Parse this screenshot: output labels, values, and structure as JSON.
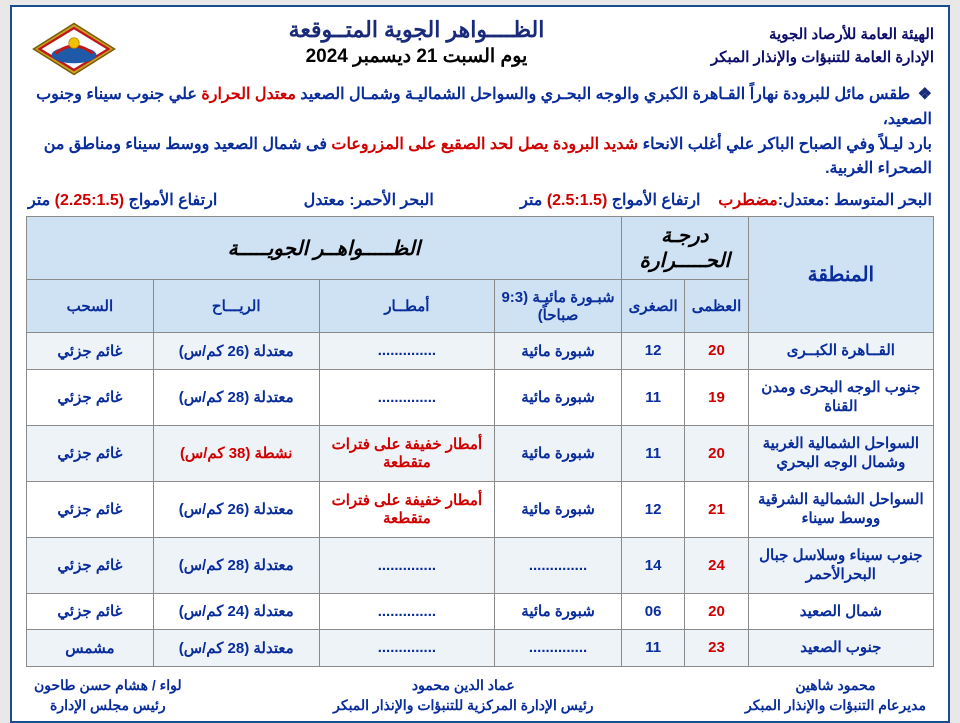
{
  "org": {
    "l1": "الهيئة العامة للأرصاد الجوية",
    "l2": "الإدارة العامة للتنبؤات والإنذار المبكر"
  },
  "title": {
    "main": "الظــــواهر الجوية المتــوقعة",
    "date": "يوم  السبت 21 ديسمبر 2024"
  },
  "summary": {
    "p1a": "طقس مائل للبرودة نهاراً القـاهرة الكبري والوجه البحـري والسواحل الشماليـة وشمـال الصعيد ",
    "p1b": "معتدل الحرارة",
    "p1c": " علي  جنوب سيناء وجنوب الصعيد،",
    "p2a": "بارد ليـلاً وفي الصباح الباكر علي أغلب الانحاء ",
    "p2b": "شديد البرودة يصل لحد الصقيع على المزروعات",
    "p2c": " فى شمال الصعيد ووسط سيناء ومناطق من الصحراء الغربية."
  },
  "sea": {
    "med_label": "البحر المتوسط :",
    "med_state_lbl": "معتدل:",
    "med_state": "مضطرب",
    "med_wave_lbl": "ارتفاع الأمواج ",
    "med_wave_val": "(2.5:1.5)",
    "meter": " متر",
    "red_label": "البحر الأحمر:",
    "red_state": " معتدل",
    "red_wave_lbl": "ارتفاع الأمواج ",
    "red_wave_val": "(2.25:1.5)"
  },
  "table": {
    "hd_region": "المنطقة",
    "hd_temp": "درجـة الحـــــرارة",
    "hd_phen": "الظـــــواهــر الجويـــــة",
    "hd_hi": "العظمى",
    "hd_lo": "الصغرى",
    "hd_fog": "شبـورة مائيـة (9:3 صباحاً)",
    "hd_rain": "أمطــار",
    "hd_wind": "الريـــاح",
    "hd_cloud": "السحب",
    "rows": [
      {
        "region": "القــاهرة الكبــرى",
        "hi": "20",
        "lo": "12",
        "fog": "شبورة مائية",
        "rain": "..............",
        "rain_red": false,
        "wind": "معتدلة (26 كم/س)",
        "wind_red": false,
        "cloud": "غائم جزئي"
      },
      {
        "region": "جنوب الوجه البحرى ومدن القناة",
        "hi": "19",
        "lo": "11",
        "fog": "شبورة مائية",
        "rain": "..............",
        "rain_red": false,
        "wind": "معتدلة (28 كم/س)",
        "wind_red": false,
        "cloud": "غائم جزئي"
      },
      {
        "region": "السواحل الشمالية الغربية وشمال الوجه البحري",
        "hi": "20",
        "lo": "11",
        "fog": "شبورة مائية",
        "rain": "أمطار خفيفة على فترات متقطعة",
        "rain_red": true,
        "wind": "نشطة (38 كم/س)",
        "wind_red": true,
        "cloud": "غائم جزئي"
      },
      {
        "region": "السواحل الشمالية الشرقية ووسط سيناء",
        "hi": "21",
        "lo": "12",
        "fog": "شبورة مائية",
        "rain": "أمطار خفيفة على فترات متقطعة",
        "rain_red": true,
        "wind": "معتدلة (26 كم/س)",
        "wind_red": false,
        "cloud": "غائم جزئي"
      },
      {
        "region": "جنوب سيناء وسلاسل جبال البحرالأحمر",
        "hi": "24",
        "lo": "14",
        "fog": "..............",
        "rain": "..............",
        "rain_red": false,
        "wind": "معتدلة (28 كم/س)",
        "wind_red": false,
        "cloud": "غائم جزئي"
      },
      {
        "region": "شمال الصعيد",
        "hi": "20",
        "lo": "06",
        "fog": "شبورة مائية",
        "rain": "..............",
        "rain_red": false,
        "wind": "معتدلة (24 كم/س)",
        "wind_red": false,
        "cloud": "غائم جزئي"
      },
      {
        "region": "جنوب الصعيد",
        "hi": "23",
        "lo": "11",
        "fog": "..............",
        "rain": "..............",
        "rain_red": false,
        "wind": "معتدلة (28 كم/س)",
        "wind_red": false,
        "cloud": "مشمس"
      }
    ]
  },
  "sign": {
    "a_name": "محمود شاهين",
    "a_title": "مديرعام التنبؤات والإنذار المبكر",
    "b_name": "عماد الدين محمود",
    "b_title": "رئيس الإدارة المركزية للتنبؤات والإنذار المبكر",
    "c_name": "لواء / هشام حسن طاحون",
    "c_title": "رئيس مجلس الإدارة"
  },
  "style": {
    "border": "#1a4d8f",
    "header_bg": "#cfe2f3",
    "grid": "#8a8a8a",
    "blue": "#0a2d9c",
    "red": "#d10000",
    "row_alt": "#eef3f8",
    "page_bg": "#ffffff"
  }
}
